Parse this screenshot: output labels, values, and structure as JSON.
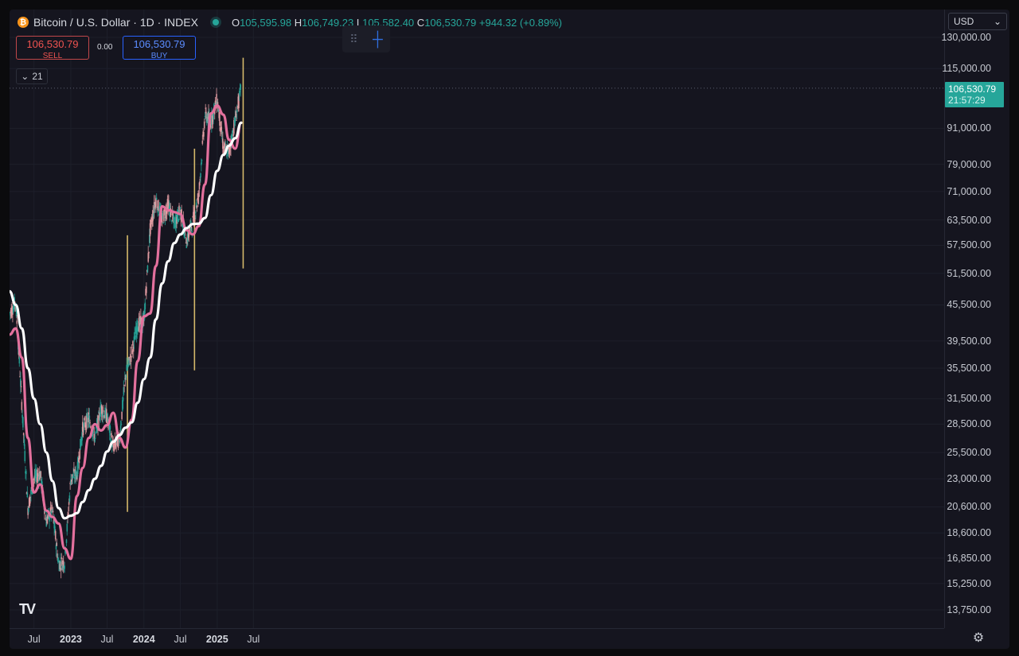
{
  "header": {
    "symbol_icon": "bitcoin-icon",
    "title": "Bitcoin / U.S. Dollar · 1D · INDEX",
    "ohlc": {
      "o_label": "O",
      "o_value": "105,595.98",
      "h_label": "H",
      "h_value": "106,749.23",
      "l_label": "L",
      "l_value": "105,582.40",
      "c_label": "C",
      "c_value": "106,530.79",
      "change": "+944.32 (+0.89%)"
    }
  },
  "trade": {
    "sell_price": "106,530.79",
    "sell_label": "SELL",
    "spread": "0.00",
    "buy_price": "106,530.79",
    "buy_label": "BUY"
  },
  "indicators_toggle": {
    "icon": "chevron-down-icon",
    "count": "21"
  },
  "price_axis": {
    "currency": "USD",
    "last_price": "106,530.79",
    "countdown": "21:57:29"
  },
  "colors": {
    "background": "#15151f",
    "up_candle": "#26a69a",
    "down_candle": "#e8a0a6",
    "ma_fast": "#e3709d",
    "ma_slow": "#ffffff",
    "vertical_marker": "#d4b86a"
  },
  "chart_data": {
    "type": "line",
    "scale": "log",
    "ylim": [
      12800,
      145000
    ],
    "y_ticks": [
      "130,000.00",
      "115,000.00",
      "91,000.00",
      "79,000.00",
      "71,000.00",
      "63,500.00",
      "57,500.00",
      "51,500.00",
      "45,500.00",
      "39,500.00",
      "35,500.00",
      "31,500.00",
      "28,500.00",
      "25,500.00",
      "23,000.00",
      "20,600.00",
      "18,600.00",
      "16,850.00",
      "15,250.00",
      "13,750.00"
    ],
    "x_ticks": [
      "Jul",
      "2023",
      "Jul",
      "2024",
      "Jul",
      "2025",
      "Jul"
    ],
    "x_years": [
      false,
      true,
      false,
      true,
      false,
      true,
      false
    ],
    "price_dates": [
      "2022-03",
      "2022-04",
      "2022-05",
      "2022-06",
      "2022-07",
      "2022-08",
      "2022-09",
      "2022-10",
      "2022-11",
      "2022-12",
      "2023-01",
      "2023-02",
      "2023-03",
      "2023-04",
      "2023-05",
      "2023-06",
      "2023-07",
      "2023-08",
      "2023-09",
      "2023-10",
      "2023-11",
      "2023-12",
      "2024-01",
      "2024-02",
      "2024-03",
      "2024-04",
      "2024-05",
      "2024-06",
      "2024-07",
      "2024-08",
      "2024-09",
      "2024-10",
      "2024-11",
      "2024-12",
      "2025-01",
      "2025-02",
      "2025-03",
      "2025-04",
      "2025-05"
    ],
    "price": [
      44000,
      46000,
      31000,
      20500,
      23000,
      23500,
      19500,
      20300,
      16500,
      16600,
      23000,
      23500,
      28000,
      29200,
      27000,
      30400,
      29300,
      26000,
      26900,
      34500,
      37700,
      42200,
      42500,
      61000,
      69000,
      63500,
      67500,
      62600,
      66000,
      58500,
      63000,
      70000,
      96000,
      93500,
      102000,
      84000,
      83000,
      94000,
      106500
    ],
    "series": [
      {
        "dates": [
          "2022-03",
          "2022-04",
          "2022-05",
          "2022-06",
          "2022-07",
          "2022-08",
          "2022-09",
          "2022-10",
          "2022-11",
          "2022-12",
          "2023-01",
          "2023-02",
          "2023-03",
          "2023-04",
          "2023-05",
          "2023-06",
          "2023-07",
          "2023-08",
          "2023-09",
          "2023-10",
          "2023-11",
          "2023-12",
          "2024-01",
          "2024-02",
          "2024-03",
          "2024-04",
          "2024-05",
          "2024-06",
          "2024-07",
          "2024-08",
          "2024-09",
          "2024-10",
          "2024-11",
          "2024-12",
          "2025-01",
          "2025-02",
          "2025-03",
          "2025-04",
          "2025-05"
        ],
        "values": [
          40500,
          41500,
          37000,
          27000,
          21800,
          22500,
          20300,
          19800,
          19300,
          17500,
          16800,
          21500,
          24000,
          27000,
          28500,
          27800,
          28400,
          29800,
          27000,
          26000,
          29000,
          36500,
          43500,
          44000,
          53000,
          67000,
          66000,
          65500,
          65000,
          61000,
          60000,
          62000,
          73000,
          96500,
          99500,
          96000,
          87000,
          84000,
          93000
        ]
      },
      {
        "dates": [
          "2022-03",
          "2022-04",
          "2022-05",
          "2022-06",
          "2022-07",
          "2022-08",
          "2022-09",
          "2022-10",
          "2022-11",
          "2022-12",
          "2023-01",
          "2023-02",
          "2023-03",
          "2023-04",
          "2023-05",
          "2023-06",
          "2023-07",
          "2023-08",
          "2023-09",
          "2023-10",
          "2023-11",
          "2023-12",
          "2024-01",
          "2024-02",
          "2024-03",
          "2024-04",
          "2024-05",
          "2024-06",
          "2024-07",
          "2024-08",
          "2024-09",
          "2024-10",
          "2024-11",
          "2024-12",
          "2025-01",
          "2025-02",
          "2025-03",
          "2025-04",
          "2025-05"
        ],
        "values": [
          48000,
          45500,
          41500,
          35500,
          31500,
          28500,
          25500,
          22800,
          20500,
          19700,
          19900,
          20100,
          21000,
          22000,
          23000,
          24200,
          25600,
          26600,
          27300,
          28100,
          28700,
          31000,
          34000,
          37000,
          43000,
          49500,
          54000,
          58000,
          60000,
          61500,
          62500,
          62600,
          64000,
          70000,
          77000,
          82000,
          85000,
          87500,
          93000
        ]
      }
    ],
    "vertical_markers": [
      {
        "date": "2023-09",
        "low": 20200,
        "high": 59800
      },
      {
        "date": "2024-08",
        "low": 35200,
        "high": 84000
      },
      {
        "date": "2025-04",
        "low": 52500,
        "high": 120000
      }
    ]
  }
}
